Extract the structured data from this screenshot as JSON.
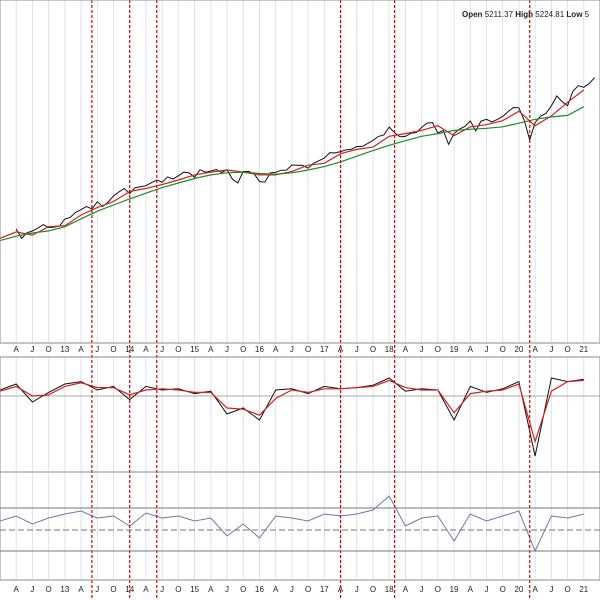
{
  "header": {
    "open_label": "Open",
    "open": 5211.37,
    "high_label": "High",
    "high": 5224.81,
    "low_label": "Low",
    "low": "5"
  },
  "markers": {
    "color": "#d40000",
    "x": [
      "2013-06",
      "2014-01",
      "2014-06",
      "2017-04",
      "2018-02",
      "2020-03"
    ]
  },
  "chart_data": [
    {
      "type": "line",
      "log_scale": true,
      "xlim": [
        "2012-01",
        "2021-04"
      ],
      "ylim": [
        650,
        6600
      ],
      "xticks": [
        {
          "value": "2012-04",
          "label": "A"
        },
        {
          "value": "2012-07",
          "label": "J"
        },
        {
          "value": "2012-10",
          "label": "O"
        },
        {
          "value": "2013-01",
          "label": "13"
        },
        {
          "value": "2013-04",
          "label": "A"
        },
        {
          "value": "2013-07",
          "label": "J"
        },
        {
          "value": "2013-10",
          "label": "O"
        },
        {
          "value": "2014-01",
          "label": "14"
        },
        {
          "value": "2014-04",
          "label": "A"
        },
        {
          "value": "2014-07",
          "label": "J"
        },
        {
          "value": "2014-10",
          "label": "O"
        },
        {
          "value": "2015-01",
          "label": "15"
        },
        {
          "value": "2015-04",
          "label": "A"
        },
        {
          "value": "2015-07",
          "label": "J"
        },
        {
          "value": "2015-10",
          "label": "O"
        },
        {
          "value": "2016-01",
          "label": "16"
        },
        {
          "value": "2016-04",
          "label": "A"
        },
        {
          "value": "2016-07",
          "label": "J"
        },
        {
          "value": "2016-10",
          "label": "O"
        },
        {
          "value": "2017-01",
          "label": "17"
        },
        {
          "value": "2017-04",
          "label": "A"
        },
        {
          "value": "2017-07",
          "label": "J"
        },
        {
          "value": "2017-10",
          "label": "O"
        },
        {
          "value": "2018-01",
          "label": "18"
        },
        {
          "value": "2018-04",
          "label": "A"
        },
        {
          "value": "2018-07",
          "label": "J"
        },
        {
          "value": "2018-10",
          "label": "O"
        },
        {
          "value": "2019-01",
          "label": "19"
        },
        {
          "value": "2019-04",
          "label": "A"
        },
        {
          "value": "2019-07",
          "label": "J"
        },
        {
          "value": "2019-10",
          "label": "O"
        },
        {
          "value": "2020-01",
          "label": "20"
        },
        {
          "value": "2020-04",
          "label": "A"
        },
        {
          "value": "2020-07",
          "label": "J"
        },
        {
          "value": "2020-10",
          "label": "O"
        },
        {
          "value": "2021-01",
          "label": "21"
        }
      ],
      "series": [
        {
          "color": "#111111",
          "x": [
            "2012-04",
            "2012-05",
            "2012-06",
            "2012-07",
            "2012-08",
            "2012-09",
            "2012-10",
            "2012-11",
            "2012-12",
            "2013-01",
            "2013-02",
            "2013-03",
            "2013-04",
            "2013-05",
            "2013-06",
            "2013-07",
            "2013-08",
            "2013-09",
            "2013-10",
            "2013-11",
            "2013-12",
            "2014-01",
            "2014-02",
            "2014-03",
            "2014-04",
            "2014-05",
            "2014-06",
            "2014-07",
            "2014-08",
            "2014-09",
            "2014-10",
            "2014-11",
            "2014-12",
            "2015-01",
            "2015-02",
            "2015-03",
            "2015-04",
            "2015-05",
            "2015-06",
            "2015-07",
            "2015-08",
            "2015-09",
            "2015-10",
            "2015-11",
            "2015-12",
            "2016-01",
            "2016-02",
            "2016-03",
            "2016-04",
            "2016-05",
            "2016-06",
            "2016-07",
            "2016-08",
            "2016-09",
            "2016-10",
            "2016-11",
            "2016-12",
            "2017-01",
            "2017-02",
            "2017-03",
            "2017-04",
            "2017-05",
            "2017-06",
            "2017-07",
            "2017-08",
            "2017-09",
            "2017-10",
            "2017-11",
            "2017-12",
            "2018-01",
            "2018-02",
            "2018-03",
            "2018-04",
            "2018-05",
            "2018-06",
            "2018-07",
            "2018-08",
            "2018-09",
            "2018-10",
            "2018-11",
            "2018-12",
            "2019-01",
            "2019-02",
            "2019-03",
            "2019-04",
            "2019-05",
            "2019-06",
            "2019-07",
            "2019-08",
            "2019-09",
            "2019-10",
            "2019-11",
            "2019-12",
            "2020-01",
            "2020-02",
            "2020-03",
            "2020-04",
            "2020-05",
            "2020-06",
            "2020-07",
            "2020-08",
            "2020-09",
            "2020-10",
            "2020-11",
            "2020-12",
            "2021-01",
            "2021-02",
            "2021-03"
          ],
          "values": [
            1398,
            1310,
            1362,
            1379,
            1406,
            1441,
            1412,
            1416,
            1426,
            1498,
            1515,
            1569,
            1598,
            1631,
            1606,
            1686,
            1633,
            1682,
            1757,
            1806,
            1848,
            1783,
            1859,
            1872,
            1884,
            1924,
            1960,
            1931,
            2003,
            1972,
            2018,
            2068,
            2059,
            1995,
            2105,
            2068,
            2086,
            2107,
            2063,
            2104,
            1972,
            1920,
            2079,
            2080,
            2044,
            1940,
            1932,
            2060,
            2065,
            2097,
            2099,
            2174,
            2171,
            2168,
            2126,
            2199,
            2239,
            2279,
            2364,
            2363,
            2384,
            2412,
            2423,
            2470,
            2472,
            2519,
            2575,
            2648,
            2674,
            2824,
            2714,
            2641,
            2648,
            2705,
            2718,
            2816,
            2902,
            2914,
            2712,
            2760,
            2507,
            2704,
            2784,
            2834,
            2946,
            2752,
            2942,
            2980,
            2926,
            2977,
            3038,
            3141,
            3231,
            3226,
            2954,
            2585,
            2912,
            3044,
            3100,
            3271,
            3500,
            3363,
            3270,
            3622,
            3756,
            3714,
            3811,
            3973
          ]
        },
        {
          "color": "#d42020",
          "x": [
            "2012-01",
            "2012-04",
            "2012-07",
            "2012-10",
            "2013-01",
            "2013-04",
            "2013-07",
            "2013-10",
            "2014-01",
            "2014-04",
            "2014-07",
            "2014-10",
            "2015-01",
            "2015-04",
            "2015-07",
            "2015-10",
            "2016-01",
            "2016-04",
            "2016-07",
            "2016-10",
            "2017-01",
            "2017-04",
            "2017-07",
            "2017-10",
            "2018-01",
            "2018-04",
            "2018-07",
            "2018-10",
            "2019-01",
            "2019-04",
            "2019-07",
            "2019-10",
            "2020-01",
            "2020-04",
            "2020-07",
            "2020-10",
            "2021-01"
          ],
          "values": [
            1310,
            1370,
            1340,
            1420,
            1430,
            1540,
            1620,
            1690,
            1810,
            1850,
            1900,
            1960,
            2030,
            2070,
            2100,
            2070,
            2030,
            2030,
            2080,
            2170,
            2200,
            2350,
            2420,
            2460,
            2650,
            2700,
            2760,
            2850,
            2660,
            2830,
            2870,
            2950,
            3150,
            2850,
            3050,
            3350,
            3650
          ]
        },
        {
          "color": "#1f8a2a",
          "x": [
            "2012-01",
            "2012-04",
            "2012-07",
            "2012-10",
            "2013-01",
            "2013-04",
            "2013-07",
            "2013-10",
            "2014-01",
            "2014-04",
            "2014-07",
            "2014-10",
            "2015-01",
            "2015-04",
            "2015-07",
            "2015-10",
            "2016-01",
            "2016-04",
            "2016-07",
            "2016-10",
            "2017-01",
            "2017-04",
            "2017-07",
            "2017-10",
            "2018-01",
            "2018-04",
            "2018-07",
            "2018-10",
            "2019-01",
            "2019-04",
            "2019-07",
            "2019-10",
            "2020-01",
            "2020-04",
            "2020-07",
            "2020-10",
            "2021-01"
          ],
          "values": [
            1290,
            1330,
            1360,
            1380,
            1420,
            1500,
            1580,
            1650,
            1720,
            1790,
            1860,
            1920,
            1980,
            2030,
            2060,
            2070,
            2050,
            2040,
            2060,
            2100,
            2150,
            2220,
            2310,
            2400,
            2490,
            2570,
            2650,
            2700,
            2760,
            2780,
            2800,
            2830,
            2900,
            2980,
            3030,
            3060,
            3250
          ]
        }
      ]
    },
    {
      "type": "line",
      "log_scale": false,
      "xlim": [
        "2012-01",
        "2021-04"
      ],
      "ylim": [
        -6,
        3
      ],
      "series": [
        {
          "color": "#111111",
          "x": [
            "2012-01",
            "2012-04",
            "2012-07",
            "2012-10",
            "2013-01",
            "2013-04",
            "2013-07",
            "2013-10",
            "2014-01",
            "2014-04",
            "2014-07",
            "2014-10",
            "2015-01",
            "2015-04",
            "2015-07",
            "2015-10",
            "2016-01",
            "2016-04",
            "2016-07",
            "2016-10",
            "2017-01",
            "2017-04",
            "2017-07",
            "2017-10",
            "2018-01",
            "2018-04",
            "2018-07",
            "2018-10",
            "2019-01",
            "2019-04",
            "2019-07",
            "2019-10",
            "2020-01",
            "2020-04",
            "2020-07",
            "2020-10",
            "2021-01"
          ],
          "values": [
            0.5,
            1,
            -0.5,
            0.3,
            1,
            1.2,
            0.5,
            0.8,
            -0.3,
            0.8,
            0.5,
            0.6,
            0.2,
            0.4,
            -1.5,
            -1,
            -2,
            0.5,
            0.6,
            0.2,
            0.8,
            0.6,
            0.7,
            0.9,
            1.5,
            0.4,
            0.6,
            0.5,
            -2,
            0.8,
            0.3,
            0.6,
            1.2,
            -5,
            1.5,
            1.2,
            1.4
          ]
        },
        {
          "color": "#d42020",
          "x": [
            "2012-01",
            "2012-04",
            "2012-07",
            "2012-10",
            "2013-01",
            "2013-04",
            "2013-07",
            "2013-10",
            "2014-01",
            "2014-04",
            "2014-07",
            "2014-10",
            "2015-01",
            "2015-04",
            "2015-07",
            "2015-10",
            "2016-01",
            "2016-04",
            "2016-07",
            "2016-10",
            "2017-01",
            "2017-04",
            "2017-07",
            "2017-10",
            "2018-01",
            "2018-04",
            "2018-07",
            "2018-10",
            "2019-01",
            "2019-04",
            "2019-07",
            "2019-10",
            "2020-01",
            "2020-04",
            "2020-07",
            "2020-10",
            "2021-01"
          ],
          "values": [
            0.4,
            0.8,
            0,
            0.1,
            0.8,
            1.1,
            0.7,
            0.7,
            0.1,
            0.5,
            0.6,
            0.5,
            0.3,
            0.3,
            -1,
            -1.1,
            -1.6,
            -0.2,
            0.5,
            0.3,
            0.6,
            0.6,
            0.7,
            0.8,
            1.3,
            0.7,
            0.5,
            0.5,
            -1.4,
            0.2,
            0.4,
            0.5,
            1,
            -3.8,
            0.4,
            1.2,
            1.3
          ]
        }
      ]
    },
    {
      "type": "line",
      "log_scale": false,
      "xlim": [
        "2012-01",
        "2021-04"
      ],
      "ylim": [
        0,
        100
      ],
      "series": [
        {
          "color": "#6b7aa6",
          "x": [
            "2012-01",
            "2012-04",
            "2012-07",
            "2012-10",
            "2013-01",
            "2013-04",
            "2013-07",
            "2013-10",
            "2014-01",
            "2014-04",
            "2014-07",
            "2014-10",
            "2015-01",
            "2015-04",
            "2015-07",
            "2015-10",
            "2016-01",
            "2016-04",
            "2016-07",
            "2016-10",
            "2017-01",
            "2017-04",
            "2017-07",
            "2017-10",
            "2018-01",
            "2018-04",
            "2018-07",
            "2018-10",
            "2019-01",
            "2019-04",
            "2019-07",
            "2019-10",
            "2020-01",
            "2020-04",
            "2020-07",
            "2020-10",
            "2021-01"
          ],
          "values": [
            55,
            60,
            52,
            58,
            62,
            65,
            58,
            60,
            50,
            63,
            58,
            60,
            55,
            58,
            40,
            52,
            38,
            60,
            58,
            55,
            62,
            60,
            62,
            66,
            80,
            50,
            58,
            60,
            35,
            62,
            55,
            60,
            65,
            25,
            60,
            58,
            62
          ]
        }
      ]
    }
  ]
}
